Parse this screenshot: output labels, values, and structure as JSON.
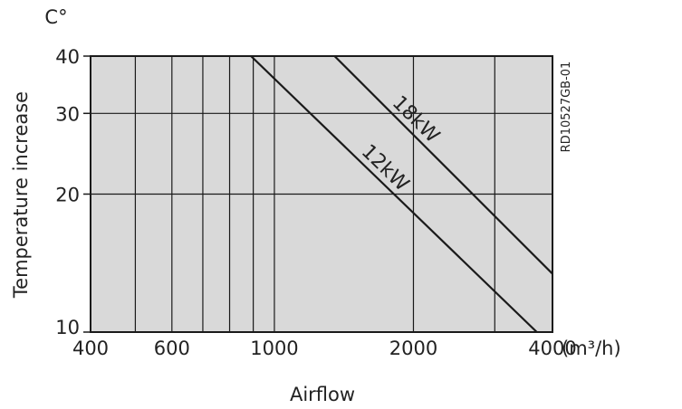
{
  "chart_data": {
    "type": "line",
    "title": "",
    "xlabel": "Airflow",
    "x_unit": "(m³/h)",
    "ylabel": "Temperature increase",
    "y_unit": "C°",
    "x_scale": "log",
    "y_scale": "log",
    "xlim": [
      400,
      4000
    ],
    "ylim": [
      10,
      40
    ],
    "x_ticks": [
      400,
      600,
      1000,
      2000,
      4000
    ],
    "x_tick_labels": [
      "400",
      "600",
      "1000",
      "2000",
      "4000"
    ],
    "x_gridlines": [
      500,
      600,
      700,
      800,
      900,
      1000,
      2000,
      3000
    ],
    "y_ticks": [
      10,
      20,
      30,
      40
    ],
    "y_tick_labels": [
      "10",
      "20",
      "30",
      "40"
    ],
    "y_gridlines": [
      20,
      30
    ],
    "grid": true,
    "plot_background": "#d9d9d9",
    "line_color": "#1a1a1a",
    "series": [
      {
        "name": "12kW",
        "x": [
          890,
          3700
        ],
        "y": [
          40,
          10
        ]
      },
      {
        "name": "18kW",
        "x": [
          1350,
          4000
        ],
        "y": [
          40,
          13.4
        ]
      }
    ],
    "annotations": [
      "RD10527GB-01"
    ]
  }
}
